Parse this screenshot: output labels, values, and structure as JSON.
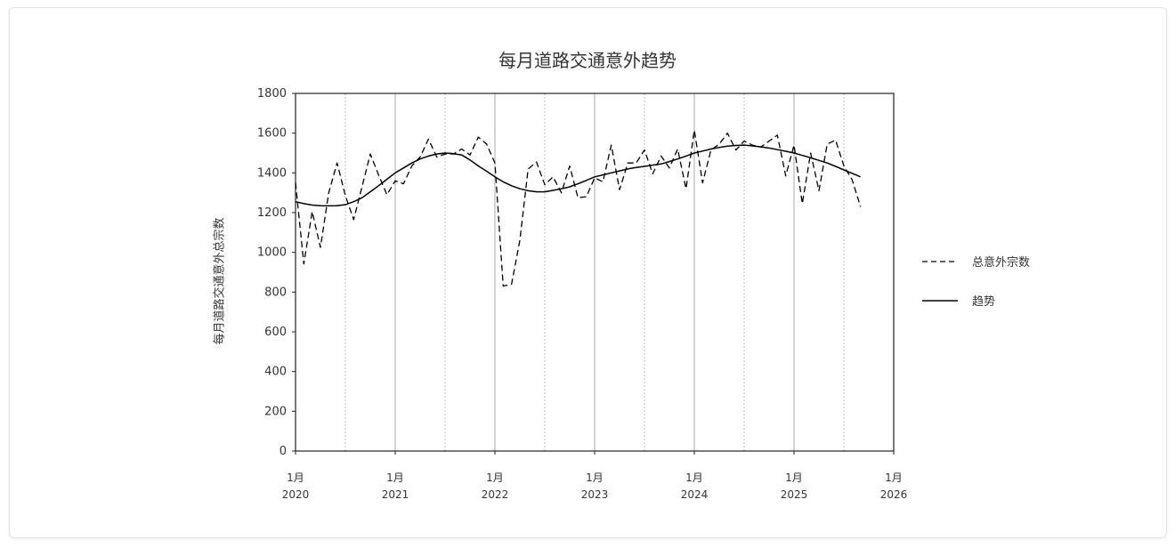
{
  "chart_data": {
    "type": "line",
    "title": "每月道路交通意外趋势",
    "xlabel": "",
    "ylabel": "每月道路交通意外总宗数",
    "ylim": [
      0,
      1800
    ],
    "yticks": [
      0,
      200,
      400,
      600,
      800,
      1000,
      1200,
      1400,
      1600,
      1800
    ],
    "xlim": [
      "2020-01",
      "2026-01"
    ],
    "xticks": [
      {
        "month": "1月",
        "year": "2020"
      },
      {
        "month": "1月",
        "year": "2021"
      },
      {
        "month": "1月",
        "year": "2022"
      },
      {
        "month": "1月",
        "year": "2023"
      },
      {
        "month": "1月",
        "year": "2024"
      },
      {
        "month": "1月",
        "year": "2025"
      },
      {
        "month": "1月",
        "year": "2026"
      }
    ],
    "grid": "vertical lines at each year (solid) and mid-year (dotted)",
    "legend_position": "right",
    "x": [
      "2020-01",
      "2020-02",
      "2020-03",
      "2020-04",
      "2020-05",
      "2020-06",
      "2020-07",
      "2020-08",
      "2020-09",
      "2020-10",
      "2020-11",
      "2020-12",
      "2021-01",
      "2021-02",
      "2021-03",
      "2021-04",
      "2021-05",
      "2021-06",
      "2021-07",
      "2021-08",
      "2021-09",
      "2021-10",
      "2021-11",
      "2021-12",
      "2022-01",
      "2022-02",
      "2022-03",
      "2022-04",
      "2022-05",
      "2022-06",
      "2022-07",
      "2022-08",
      "2022-09",
      "2022-10",
      "2022-11",
      "2022-12",
      "2023-01",
      "2023-02",
      "2023-03",
      "2023-04",
      "2023-05",
      "2023-06",
      "2023-07",
      "2023-08",
      "2023-09",
      "2023-10",
      "2023-11",
      "2023-12",
      "2024-01",
      "2024-02",
      "2024-03",
      "2024-04",
      "2024-05",
      "2024-06",
      "2024-07",
      "2024-08",
      "2024-09",
      "2024-10",
      "2024-11",
      "2024-12",
      "2025-01",
      "2025-02",
      "2025-03",
      "2025-04",
      "2025-05",
      "2025-06",
      "2025-07",
      "2025-08",
      "2025-09"
    ],
    "series": [
      {
        "name": "总意外宗数",
        "style": "dashed",
        "color": "#000000",
        "values": [
          1350,
          942,
          1205,
          1025,
          1300,
          1450,
          1285,
          1165,
          1330,
          1495,
          1390,
          1290,
          1360,
          1345,
          1435,
          1480,
          1570,
          1480,
          1495,
          1495,
          1520,
          1490,
          1580,
          1545,
          1450,
          830,
          840,
          1060,
          1420,
          1455,
          1340,
          1380,
          1300,
          1435,
          1275,
          1280,
          1375,
          1355,
          1540,
          1315,
          1450,
          1450,
          1515,
          1395,
          1485,
          1425,
          1520,
          1320,
          1615,
          1350,
          1515,
          1545,
          1600,
          1515,
          1560,
          1540,
          1530,
          1560,
          1590,
          1385,
          1540,
          1245,
          1500,
          1310,
          1545,
          1565,
          1435,
          1365,
          1230
        ]
      },
      {
        "name": "趋势",
        "style": "solid",
        "color": "#000000",
        "values": [
          1255,
          1245,
          1238,
          1235,
          1234,
          1235,
          1240,
          1255,
          1275,
          1305,
          1335,
          1368,
          1400,
          1425,
          1450,
          1470,
          1485,
          1495,
          1500,
          1497,
          1490,
          1465,
          1435,
          1408,
          1380,
          1355,
          1335,
          1320,
          1310,
          1305,
          1305,
          1312,
          1320,
          1330,
          1345,
          1362,
          1380,
          1390,
          1400,
          1410,
          1420,
          1427,
          1433,
          1439,
          1445,
          1457,
          1470,
          1485,
          1500,
          1510,
          1520,
          1528,
          1535,
          1538,
          1540,
          1536,
          1531,
          1525,
          1517,
          1509,
          1500,
          1488,
          1476,
          1463,
          1450,
          1433,
          1415,
          1398,
          1380
        ]
      }
    ]
  }
}
